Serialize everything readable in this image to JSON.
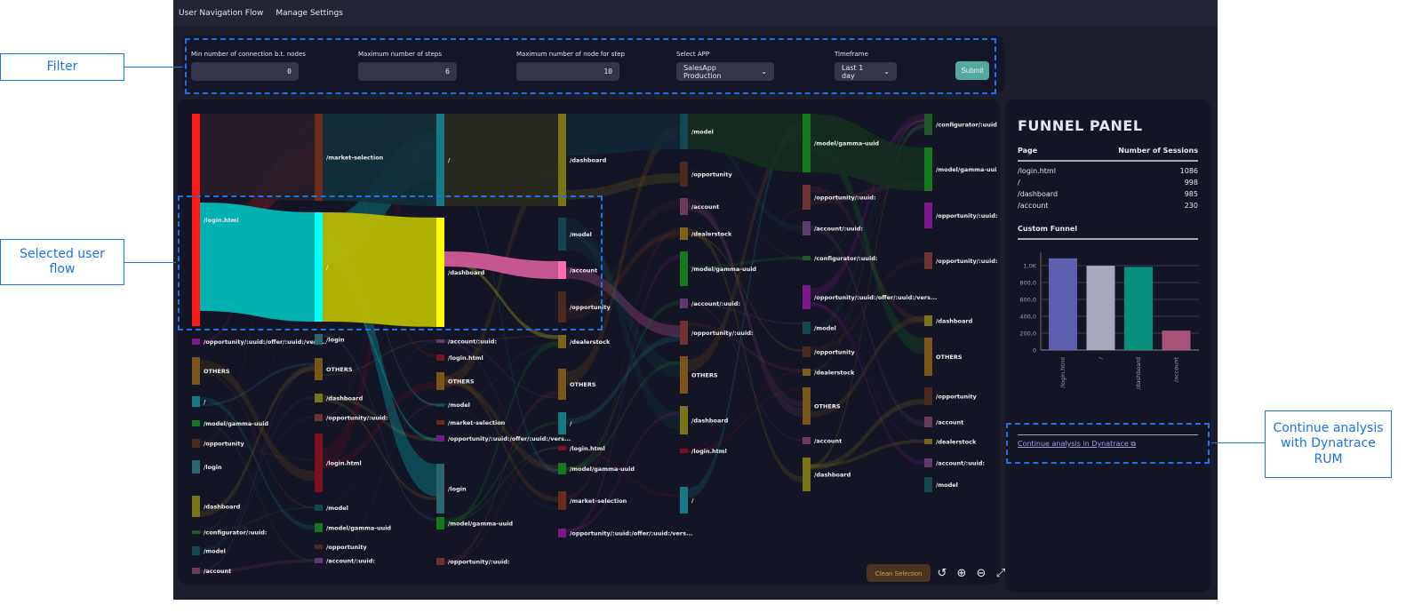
{
  "nav": {
    "items": [
      "User Navigation Flow",
      "Manage Settings"
    ]
  },
  "filters": {
    "min_conn": {
      "label": "Min number of connection b.t. nodes",
      "value": "0"
    },
    "max_steps": {
      "label": "Maximum number of steps",
      "value": "6"
    },
    "max_nodes": {
      "label": "Maximum number of node for step",
      "value": "10"
    },
    "app": {
      "label": "Select APP",
      "value": "SalesApp Production"
    },
    "timeframe": {
      "label": "Timeframe",
      "value": "Last 1 day"
    },
    "submit": "Submit"
  },
  "sankey": {
    "columns": [
      {
        "nodes": [
          {
            "label": "/login.html",
            "color": "#ff1a1a"
          },
          {
            "label": "/opportunity/:uuid:/offer/:uuid:/vers...",
            "color": "#7a1a8a"
          },
          {
            "label": "OTHERS",
            "color": "#7a5418"
          },
          {
            "label": "/",
            "color": "#137a85"
          },
          {
            "label": "/model/gamma-uuid",
            "color": "#157a1e"
          },
          {
            "label": "/opportunity",
            "color": "#4a2a1e"
          },
          {
            "label": "/login",
            "color": "#2a6670"
          },
          {
            "label": "/dashboard",
            "color": "#7a7418"
          },
          {
            "label": "/configurator/:uuid:",
            "color": "#205a2a"
          },
          {
            "label": "/model",
            "color": "#134650"
          },
          {
            "label": "/account",
            "color": "#6e3a5a"
          }
        ]
      },
      {
        "nodes": [
          {
            "label": "/market-selection",
            "color": "#6e2a1a"
          },
          {
            "label": "/",
            "color": "#00ffff"
          },
          {
            "label": "/login",
            "color": "#2a6670"
          },
          {
            "label": "OTHERS",
            "color": "#7a5418"
          },
          {
            "label": "/dashboard",
            "color": "#7a7418"
          },
          {
            "label": "/opportunity/:uuid:",
            "color": "#6e3232"
          },
          {
            "label": "/login.html",
            "color": "#7a1020"
          },
          {
            "label": "/model",
            "color": "#134650"
          },
          {
            "label": "/model/gamma-uuid",
            "color": "#157a1e"
          },
          {
            "label": "/opportunity",
            "color": "#4a2a1e"
          },
          {
            "label": "/account/:uuid:",
            "color": "#5e3a6e"
          }
        ]
      },
      {
        "nodes": [
          {
            "label": "/",
            "color": "#137a85"
          },
          {
            "label": "/dashboard",
            "color": "#ffff00"
          },
          {
            "label": "/account/:uuid:",
            "color": "#5e3a6e"
          },
          {
            "label": "/login.html",
            "color": "#7a1020"
          },
          {
            "label": "OTHERS",
            "color": "#7a5418"
          },
          {
            "label": "/model",
            "color": "#134650"
          },
          {
            "label": "/market-selection",
            "color": "#6e2a1a"
          },
          {
            "label": "/opportunity/:uuid:/offer/:uuid:/vers...",
            "color": "#7a1a8a"
          },
          {
            "label": "/login",
            "color": "#2a6670"
          },
          {
            "label": "/model/gamma-uuid",
            "color": "#157a1e"
          },
          {
            "label": "/opportunity/:uuid:",
            "color": "#6e3232"
          }
        ]
      },
      {
        "nodes": [
          {
            "label": "/dashboard",
            "color": "#7a7418"
          },
          {
            "label": "/model",
            "color": "#134650"
          },
          {
            "label": "/account",
            "color": "#ff6eb4"
          },
          {
            "label": "/opportunity",
            "color": "#4a2a1e"
          },
          {
            "label": "/dealerstock",
            "color": "#7a6418"
          },
          {
            "label": "OTHERS",
            "color": "#7a5418"
          },
          {
            "label": "/",
            "color": "#137a85"
          },
          {
            "label": "/login.html",
            "color": "#7a1020"
          },
          {
            "label": "/model/gamma-uuid",
            "color": "#157a1e"
          },
          {
            "label": "/market-selection",
            "color": "#6e2a1a"
          },
          {
            "label": "/opportunity/:uuid:/offer/:uuid:/vers...",
            "color": "#7a1a8a"
          }
        ]
      },
      {
        "nodes": [
          {
            "label": "/model",
            "color": "#134650"
          },
          {
            "label": "/opportunity",
            "color": "#4a2a1e"
          },
          {
            "label": "/account",
            "color": "#6e3a5a"
          },
          {
            "label": "/dealerstock",
            "color": "#7a6418"
          },
          {
            "label": "/model/gamma-uuid",
            "color": "#157a1e"
          },
          {
            "label": "/account/:uuid:",
            "color": "#5e3a6e"
          },
          {
            "label": "/opportunity/:uuid:",
            "color": "#6e3232"
          },
          {
            "label": "OTHERS",
            "color": "#7a5418"
          },
          {
            "label": "/dashboard",
            "color": "#7a7418"
          },
          {
            "label": "/login.html",
            "color": "#7a1020"
          },
          {
            "label": "/",
            "color": "#137a85"
          }
        ]
      },
      {
        "nodes": [
          {
            "label": "/model/gamma-uuid",
            "color": "#157a1e"
          },
          {
            "label": "/opportunity/:uuid:",
            "color": "#6e3232"
          },
          {
            "label": "/account/:uuid:",
            "color": "#5e3a6e"
          },
          {
            "label": "/configurator/:uuid:",
            "color": "#205a2a"
          },
          {
            "label": "/opportunity/:uuid:/offer/:uuid:/vers...",
            "color": "#7a1a8a"
          },
          {
            "label": "/model",
            "color": "#134650"
          },
          {
            "label": "/opportunity",
            "color": "#4a2a1e"
          },
          {
            "label": "/dealerstock",
            "color": "#7a6418"
          },
          {
            "label": "OTHERS",
            "color": "#7a5418"
          },
          {
            "label": "/account",
            "color": "#6e3a5a"
          },
          {
            "label": "/dashboard",
            "color": "#7a7418"
          }
        ]
      },
      {
        "nodes": [
          {
            "label": "/configurator/:uuid",
            "color": "#205a2a"
          },
          {
            "label": "/model/gamma-uui",
            "color": "#157a1e"
          },
          {
            "label": "/opportunity/:uuid:",
            "color": "#7a1a8a"
          },
          {
            "label": "/opportunity/:uuid:",
            "color": "#6e3232"
          },
          {
            "label": "/dashboard",
            "color": "#7a7418"
          },
          {
            "label": "OTHERS",
            "color": "#7a5418"
          },
          {
            "label": "/opportunity",
            "color": "#4a2a1e"
          },
          {
            "label": "/account",
            "color": "#6e3a5a"
          },
          {
            "label": "/dealerstock",
            "color": "#7a6418"
          },
          {
            "label": "/account/:uuid:",
            "color": "#5e3a6e"
          },
          {
            "label": "/model",
            "color": "#134650"
          }
        ]
      }
    ],
    "selected_flow_colors": [
      "#00b8b8",
      "#b8b800",
      "#d05a98"
    ]
  },
  "controls": {
    "clean": "Clean Selection",
    "icons": [
      "undo-icon",
      "zoom-in-icon",
      "zoom-out-icon",
      "expand-icon"
    ]
  },
  "funnel": {
    "title": "FUNNEL PANEL",
    "col_page": "Page",
    "col_sessions": "Number of Sessions",
    "rows": [
      {
        "page": "/login.html",
        "sessions": "1086"
      },
      {
        "page": "/",
        "sessions": "998"
      },
      {
        "page": "/dashboard",
        "sessions": "985"
      },
      {
        "page": "/account",
        "sessions": "230"
      }
    ],
    "custom_title": "Custom Funnel",
    "link": "Continue analysis in Dynatrace"
  },
  "chart_data": {
    "type": "bar",
    "categories": [
      "/login.html",
      "/",
      "/dashboard",
      "/account"
    ],
    "values": [
      1086,
      998,
      985,
      230
    ],
    "colors": [
      "#5f5fb0",
      "#a8a8be",
      "#068e7e",
      "#a85478"
    ],
    "ylim": [
      0,
      1100
    ],
    "yticks": [
      "0",
      "200,0",
      "400,0",
      "600,0",
      "800,0",
      "1,0K"
    ],
    "grid": true
  },
  "annotations": {
    "filter": "Filter",
    "selected": "Selected user flow",
    "continue": "Continue analysis with Dynatrace RUM"
  }
}
